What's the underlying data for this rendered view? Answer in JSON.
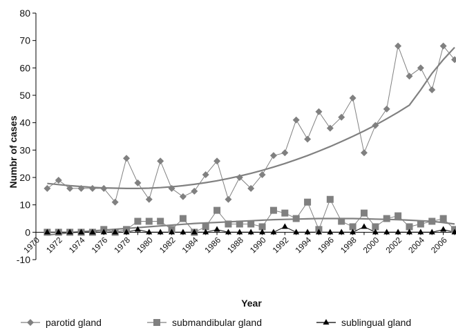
{
  "chart_data": {
    "type": "line",
    "title": "",
    "xlabel": "Year",
    "ylabel": "Numbr of cases",
    "xlim": [
      1970,
      2007
    ],
    "ylim": [
      -10,
      80
    ],
    "yticks": [
      -10,
      0,
      10,
      20,
      30,
      40,
      50,
      60,
      70,
      80
    ],
    "xticks": [
      1970,
      1972,
      1974,
      1976,
      1978,
      1980,
      1982,
      1984,
      1986,
      1988,
      1990,
      1992,
      1994,
      1996,
      1998,
      2000,
      2002,
      2004,
      2006
    ],
    "grid": false,
    "legend_position": "bottom",
    "x": [
      1971,
      1972,
      1973,
      1974,
      1975,
      1976,
      1977,
      1978,
      1979,
      1980,
      1981,
      1982,
      1983,
      1984,
      1985,
      1986,
      1987,
      1988,
      1989,
      1990,
      1991,
      1992,
      1993,
      1994,
      1995,
      1996,
      1997,
      1998,
      1999,
      2000,
      2001,
      2002,
      2003,
      2004,
      2005,
      2006,
      2007
    ],
    "series": [
      {
        "name": "parotid gland",
        "marker": "diamond",
        "color": "#808080",
        "values": [
          16,
          19,
          16,
          16,
          16,
          16,
          11,
          27,
          18,
          12,
          26,
          16,
          13,
          15,
          21,
          26,
          12,
          20,
          16,
          21,
          28,
          29,
          41,
          34,
          44,
          38,
          42,
          49,
          29,
          39,
          45,
          68,
          57,
          60,
          52,
          68,
          63
        ],
        "trend": [
          17.8,
          17.4,
          17.0,
          16.7,
          16.4,
          16.2,
          16.1,
          16.0,
          16.0,
          16.1,
          16.3,
          16.6,
          17.0,
          17.5,
          18.1,
          18.8,
          19.6,
          20.5,
          21.5,
          22.6,
          23.8,
          25.1,
          26.5,
          28.0,
          29.6,
          31.3,
          33.1,
          35.0,
          37.0,
          39.1,
          41.4,
          43.8,
          46.4,
          52.0,
          58.0,
          63.0,
          67.5
        ]
      },
      {
        "name": "submandibular gland",
        "marker": "square",
        "color": "#808080",
        "values": [
          0,
          0,
          0,
          0,
          0,
          1,
          0,
          1,
          4,
          4,
          4,
          1,
          5,
          0,
          2,
          8,
          3,
          3,
          3,
          2,
          8,
          7,
          5,
          11,
          1,
          12,
          4,
          2,
          7,
          2,
          5,
          6,
          2,
          3,
          4,
          5,
          1
        ],
        "trend": [
          -1.0,
          -0.6,
          -0.2,
          0.2,
          0.5,
          0.8,
          1.1,
          1.4,
          1.7,
          2.0,
          2.3,
          2.6,
          2.9,
          3.2,
          3.4,
          3.6,
          3.8,
          4.0,
          4.2,
          4.4,
          4.6,
          4.7,
          4.8,
          4.9,
          5.0,
          5.0,
          5.0,
          5.0,
          4.9,
          4.8,
          4.7,
          4.6,
          4.4,
          4.2,
          4.0,
          3.5,
          3.0
        ]
      },
      {
        "name": "sublingual gland",
        "marker": "triangle",
        "color": "#000000",
        "values": [
          0,
          0,
          0,
          0,
          0,
          0,
          0,
          0,
          1,
          0,
          0,
          0,
          0,
          0,
          0,
          1,
          0,
          0,
          0,
          0,
          0,
          2,
          0,
          0,
          0,
          0,
          0,
          0,
          2,
          0,
          0,
          0,
          0,
          0,
          0,
          1,
          0
        ]
      }
    ]
  }
}
